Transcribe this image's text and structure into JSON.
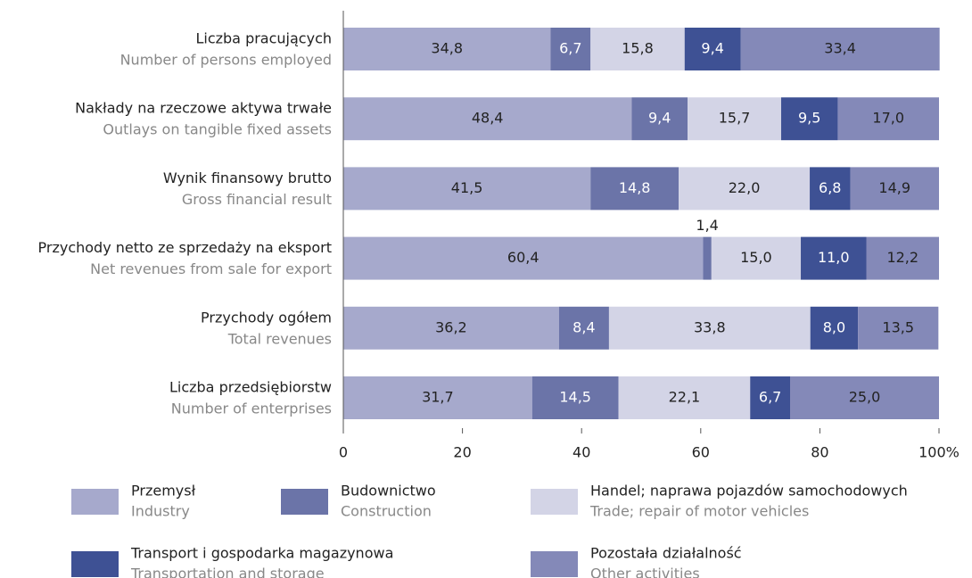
{
  "chart_data": {
    "type": "stacked-bar-horizontal",
    "categories": [
      "Liczba pracujących",
      "Nakłady na rzeczowe aktywa trwałe",
      "Wynik finansowy brutto",
      "Przychody netto ze sprzedaży na eksport",
      "Przychody ogółem",
      "Liczba przedsiębiorstw"
    ],
    "categories_en": [
      "Number of persons employed",
      "Outlays on tangible fixed assets",
      "Gross financial result",
      "Net revenues from sale for export",
      "Total revenues",
      "Number of enterprises"
    ],
    "series": [
      {
        "name": "Przemysł",
        "name_en": "Industry",
        "color": "#a6a9cc",
        "values": [
          34.8,
          48.4,
          41.5,
          60.4,
          36.2,
          31.7
        ],
        "value_labels": [
          "34,8",
          "48,4",
          "41,5",
          "60,4",
          "36,2",
          "31,7"
        ]
      },
      {
        "name": "Budownictwo",
        "name_en": "Construction",
        "color": "#6b74a8",
        "values": [
          6.7,
          9.4,
          14.8,
          1.4,
          8.4,
          14.5
        ],
        "value_labels": [
          "6,7",
          "9,4",
          "14,8",
          "1,4",
          "8,4",
          "14,5"
        ]
      },
      {
        "name": "Handel; naprawa pojazdów samochodowych",
        "name_en": "Trade; repair of motor vehicles",
        "color": "#d3d4e6",
        "values": [
          15.8,
          15.7,
          22.0,
          15.0,
          33.8,
          22.1
        ],
        "value_labels": [
          "15,8",
          "15,7",
          "22,0",
          "15,0",
          "33,8",
          "22,1"
        ]
      },
      {
        "name": "Transport i gospodarka magazynowa",
        "name_en": "Transportation and storage",
        "color": "#3e5194",
        "values": [
          9.4,
          9.5,
          6.8,
          11.0,
          8.0,
          6.7
        ],
        "value_labels": [
          "9,4",
          "9,5",
          "6,8",
          "11,0",
          "8,0",
          "6,7"
        ]
      },
      {
        "name": "Pozostała działalność",
        "name_en": "Other activities",
        "color": "#8489b8",
        "values": [
          33.4,
          17.0,
          14.9,
          12.2,
          13.5,
          25.0
        ],
        "value_labels": [
          "33,4",
          "17,0",
          "14,9",
          "12,2",
          "13,5",
          "25,0"
        ]
      }
    ],
    "xlim": [
      0,
      100
    ],
    "xticks": [
      0,
      20,
      40,
      60,
      80,
      {
        "value": 100,
        "label": "100%"
      }
    ]
  }
}
